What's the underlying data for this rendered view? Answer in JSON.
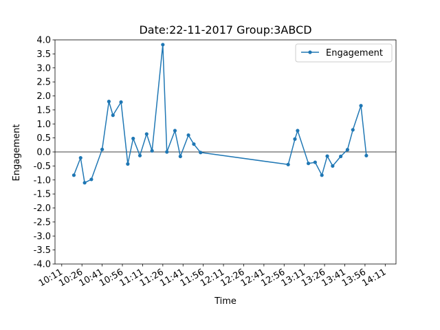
{
  "chart_data": {
    "type": "line",
    "title": "Date:22-11-2017 Group:3ABCD",
    "xlabel": "Time",
    "ylabel": "Engagement",
    "x_tick_labels": [
      "10:11",
      "10:26",
      "10:41",
      "10:56",
      "11:11",
      "11:26",
      "11:41",
      "11:56",
      "12:11",
      "12:26",
      "12:41",
      "12:56",
      "13:11",
      "13:26",
      "13:41",
      "13:56",
      "14:11"
    ],
    "y_ticks": [
      "-4.0",
      "-3.5",
      "-3.0",
      "-2.5",
      "-2.0",
      "-1.5",
      "-1.0",
      "-0.5",
      "0.0",
      "0.5",
      "1.0",
      "1.5",
      "2.0",
      "2.5",
      "3.0",
      "3.5",
      "4.0"
    ],
    "xlim": [
      "10:06",
      "14:19"
    ],
    "ylim": [
      -4.0,
      4.0
    ],
    "grid": false,
    "zero_line": true,
    "legend_position": "upper right",
    "color": "#1f77b4",
    "series": [
      {
        "name": "Engagement",
        "points": [
          {
            "x": "10:20",
            "y": -0.83
          },
          {
            "x": "10:25",
            "y": -0.21
          },
          {
            "x": "10:28",
            "y": -1.1
          },
          {
            "x": "10:33",
            "y": -0.98
          },
          {
            "x": "10:41",
            "y": 0.09
          },
          {
            "x": "10:46",
            "y": 1.8
          },
          {
            "x": "10:49",
            "y": 1.31
          },
          {
            "x": "10:55",
            "y": 1.78
          },
          {
            "x": "11:00",
            "y": -0.43
          },
          {
            "x": "11:04",
            "y": 0.48
          },
          {
            "x": "11:09",
            "y": -0.13
          },
          {
            "x": "11:14",
            "y": 0.64
          },
          {
            "x": "11:18",
            "y": 0.04
          },
          {
            "x": "11:26",
            "y": 3.83
          },
          {
            "x": "11:29",
            "y": 0.0
          },
          {
            "x": "11:35",
            "y": 0.76
          },
          {
            "x": "11:39",
            "y": -0.16
          },
          {
            "x": "11:45",
            "y": 0.6
          },
          {
            "x": "11:49",
            "y": 0.28
          },
          {
            "x": "11:54",
            "y": -0.02
          },
          {
            "x": "12:59",
            "y": -0.45
          },
          {
            "x": "13:04",
            "y": 0.46
          },
          {
            "x": "13:06",
            "y": 0.76
          },
          {
            "x": "13:14",
            "y": -0.41
          },
          {
            "x": "13:19",
            "y": -0.37
          },
          {
            "x": "13:24",
            "y": -0.83
          },
          {
            "x": "13:28",
            "y": -0.15
          },
          {
            "x": "13:32",
            "y": -0.5
          },
          {
            "x": "13:38",
            "y": -0.16
          },
          {
            "x": "13:43",
            "y": 0.08
          },
          {
            "x": "13:47",
            "y": 0.79
          },
          {
            "x": "13:53",
            "y": 1.65
          },
          {
            "x": "13:57",
            "y": -0.13
          }
        ]
      }
    ]
  }
}
